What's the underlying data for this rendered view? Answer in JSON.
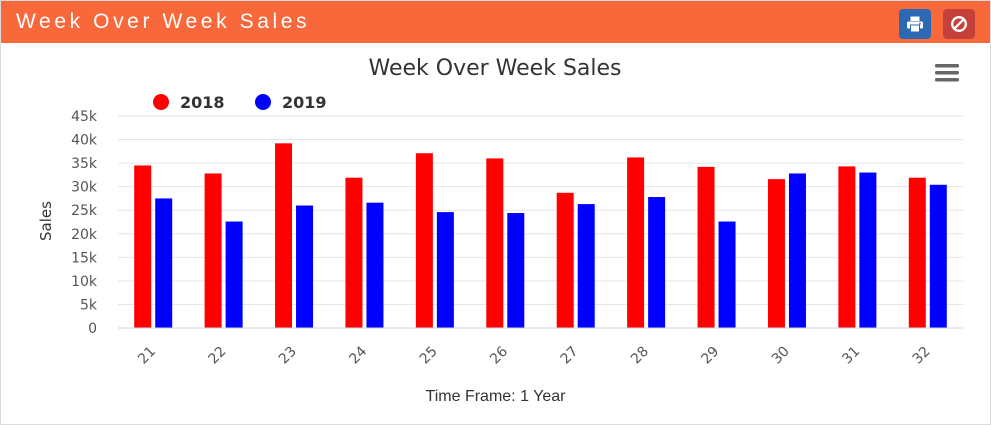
{
  "header": {
    "title": "Week Over Week Sales",
    "print_icon": "printer-icon",
    "cancel_icon": "ban-icon",
    "colors": {
      "bar": "#f8683b",
      "print": "#2c69b5",
      "cancel": "#c6403a"
    }
  },
  "menu_icon": "hamburger-menu-icon",
  "footer": {
    "text": "Time Frame: 1 Year"
  },
  "chart_data": {
    "type": "bar",
    "title": "Week Over Week Sales",
    "xlabel": "",
    "ylabel": "Sales",
    "categories": [
      "21",
      "22",
      "23",
      "24",
      "25",
      "26",
      "27",
      "28",
      "29",
      "30",
      "31",
      "32"
    ],
    "series": [
      {
        "name": "2018",
        "color": "#ff0000",
        "values": [
          34500,
          32800,
          39200,
          31900,
          37100,
          36000,
          28700,
          36200,
          34200,
          31600,
          34300,
          31900
        ]
      },
      {
        "name": "2019",
        "color": "#0000ff",
        "values": [
          27500,
          22600,
          26000,
          26600,
          24600,
          24400,
          26300,
          27800,
          22600,
          32800,
          33000,
          30400
        ]
      }
    ],
    "ylim": [
      0,
      45000
    ],
    "yticks": [
      0,
      5000,
      10000,
      15000,
      20000,
      25000,
      30000,
      35000,
      40000,
      45000
    ],
    "ytick_labels": [
      "0",
      "5k",
      "10k",
      "15k",
      "20k",
      "25k",
      "30k",
      "35k",
      "40k",
      "45k"
    ],
    "grid": true,
    "legend_position": "top-left"
  }
}
